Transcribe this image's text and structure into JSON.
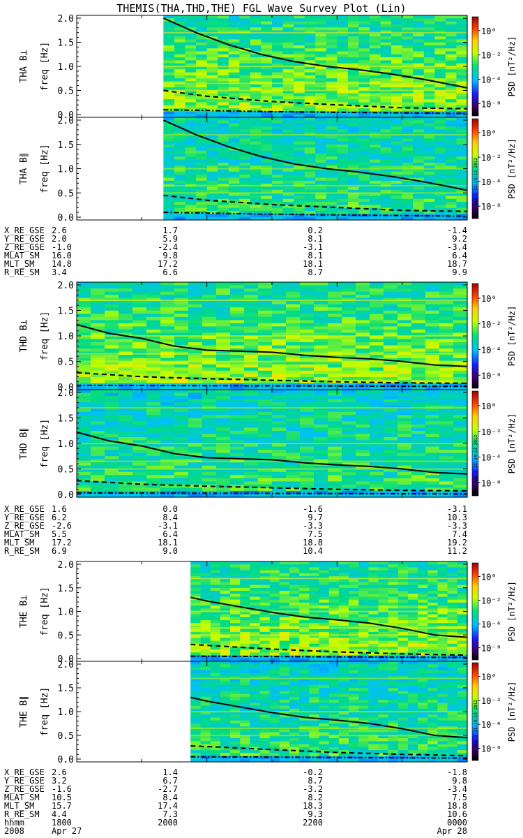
{
  "title": "THEMIS(THA,THD,THE) FGL Wave Survey Plot (Lin)",
  "colorbar": {
    "label": "PSD [nT²/Hz]",
    "ticks": [
      "10⁰",
      "10⁻²",
      "10⁻⁴",
      "10⁻⁶"
    ],
    "colors": [
      "#000000",
      "#4b0082",
      "#0000ff",
      "#00bfff",
      "#00ff80",
      "#ffff00",
      "#ff8000",
      "#ff0000",
      "#8b0000"
    ]
  },
  "stamps": [
    "Mon Sep 3 11:34:13 2012",
    "Mon Sep 3 11:34:13 2012",
    "Mon Sep 3 11:34:14 2012"
  ],
  "chart_data": [
    {
      "type": "heatmap",
      "probe": "THA",
      "x_ticks": [
        "1800",
        "2000",
        "2200",
        "0000"
      ],
      "ylim": [
        0,
        2.0
      ],
      "yticks": [
        "0.0",
        "0.5",
        "1.0",
        "1.5",
        "2.0"
      ],
      "ylabel": "freq [Hz]",
      "data_start_hhmm": "1920",
      "panels": [
        {
          "name": "THA B⊥",
          "solid_line": [
            [
              1920,
              2.0
            ],
            [
              1950,
              1.7
            ],
            [
              2020,
              1.45
            ],
            [
              2050,
              1.25
            ],
            [
              2120,
              1.1
            ],
            [
              2150,
              1.0
            ],
            [
              2220,
              0.93
            ],
            [
              2250,
              0.84
            ],
            [
              2320,
              0.73
            ],
            [
              2350,
              0.6
            ],
            [
              2400,
              0.55
            ]
          ],
          "dashed_line": [
            [
              1920,
              0.5
            ],
            [
              2000,
              0.38
            ],
            [
              2100,
              0.27
            ],
            [
              2200,
              0.2
            ],
            [
              2300,
              0.14
            ],
            [
              2400,
              0.12
            ]
          ],
          "dashdot_line": [
            [
              1920,
              0.1
            ],
            [
              2100,
              0.06
            ],
            [
              2400,
              0.02
            ]
          ]
        },
        {
          "name": "THA B∥",
          "solid_line": [
            [
              1920,
              2.0
            ],
            [
              1950,
              1.7
            ],
            [
              2020,
              1.45
            ],
            [
              2050,
              1.25
            ],
            [
              2120,
              1.1
            ],
            [
              2150,
              1.0
            ],
            [
              2220,
              0.93
            ],
            [
              2250,
              0.84
            ],
            [
              2320,
              0.73
            ],
            [
              2350,
              0.6
            ],
            [
              2400,
              0.55
            ]
          ],
          "dashed_line": [
            [
              1920,
              0.45
            ],
            [
              2000,
              0.35
            ],
            [
              2100,
              0.26
            ],
            [
              2200,
              0.2
            ],
            [
              2300,
              0.14
            ],
            [
              2400,
              0.12
            ]
          ],
          "dashdot_line": [
            [
              1920,
              0.1
            ],
            [
              2100,
              0.06
            ],
            [
              2400,
              0.02
            ]
          ]
        }
      ],
      "ephemeris": [
        {
          "label": "X_RE_GSE",
          "values": [
            "2.6",
            "1.7",
            "0.2",
            "-1.4"
          ]
        },
        {
          "label": "Y_RE_GSE",
          "values": [
            "2.0",
            "5.9",
            "8.1",
            "9.2"
          ]
        },
        {
          "label": "Z_RE_GSE",
          "values": [
            "-1.0",
            "-2.4",
            "-3.1",
            "-3.4"
          ]
        },
        {
          "label": "MLAT_SM",
          "values": [
            "16.0",
            "9.8",
            "8.1",
            "6.4"
          ]
        },
        {
          "label": "MLT_SM",
          "values": [
            "14.8",
            "17.2",
            "18.1",
            "18.7"
          ]
        },
        {
          "label": "R_RE_SM",
          "values": [
            "3.4",
            "6.6",
            "8.7",
            "9.9"
          ]
        }
      ]
    },
    {
      "type": "heatmap",
      "probe": "THD",
      "x_ticks": [
        "1800",
        "2000",
        "2200",
        "0000"
      ],
      "ylim": [
        0,
        2.0
      ],
      "yticks": [
        "0.0",
        "0.5",
        "1.0",
        "1.5",
        "2.0"
      ],
      "ylabel": "freq [Hz]",
      "data_start_hhmm": "1800",
      "panels": [
        {
          "name": "THD B⊥",
          "solid_line": [
            [
              1800,
              1.22
            ],
            [
              1830,
              1.05
            ],
            [
              1900,
              0.95
            ],
            [
              1930,
              0.8
            ],
            [
              2000,
              0.72
            ],
            [
              2030,
              0.7
            ],
            [
              2100,
              0.68
            ],
            [
              2130,
              0.62
            ],
            [
              2200,
              0.58
            ],
            [
              2230,
              0.55
            ],
            [
              2300,
              0.5
            ],
            [
              2330,
              0.43
            ],
            [
              2400,
              0.4
            ]
          ],
          "dashed_line": [
            [
              1800,
              0.28
            ],
            [
              1900,
              0.2
            ],
            [
              2000,
              0.16
            ],
            [
              2100,
              0.13
            ],
            [
              2200,
              0.1
            ],
            [
              2300,
              0.08
            ],
            [
              2400,
              0.07
            ]
          ],
          "dashdot_line": [
            [
              1800,
              0.03
            ],
            [
              2400,
              0.01
            ]
          ]
        },
        {
          "name": "THD B∥",
          "solid_line": [
            [
              1800,
              1.22
            ],
            [
              1830,
              1.05
            ],
            [
              1900,
              0.95
            ],
            [
              1930,
              0.8
            ],
            [
              2000,
              0.72
            ],
            [
              2030,
              0.7
            ],
            [
              2100,
              0.68
            ],
            [
              2130,
              0.62
            ],
            [
              2200,
              0.58
            ],
            [
              2230,
              0.55
            ],
            [
              2300,
              0.5
            ],
            [
              2330,
              0.43
            ],
            [
              2400,
              0.4
            ]
          ],
          "dashed_line": [
            [
              1800,
              0.27
            ],
            [
              1900,
              0.2
            ],
            [
              2000,
              0.16
            ],
            [
              2100,
              0.13
            ],
            [
              2200,
              0.1
            ],
            [
              2300,
              0.08
            ],
            [
              2400,
              0.07
            ]
          ],
          "dashdot_line": [
            [
              1800,
              0.03
            ],
            [
              2400,
              0.01
            ]
          ]
        }
      ],
      "ephemeris": [
        {
          "label": "X_RE_GSE",
          "values": [
            "1.6",
            "0.0",
            "-1.6",
            "-3.1"
          ]
        },
        {
          "label": "Y_RE_GSE",
          "values": [
            "6.2",
            "8.4",
            "9.7",
            "10.3"
          ]
        },
        {
          "label": "Z_RE_GSE",
          "values": [
            "-2.6",
            "-3.1",
            "-3.3",
            "-3.3"
          ]
        },
        {
          "label": "MLAT_SM",
          "values": [
            "5.5",
            "6.4",
            "7.5",
            "7.4"
          ]
        },
        {
          "label": "MLT_SM",
          "values": [
            "17.2",
            "18.1",
            "18.8",
            "19.2"
          ]
        },
        {
          "label": "R_RE_SM",
          "values": [
            "6.9",
            "9.0",
            "10.4",
            "11.2"
          ]
        }
      ]
    },
    {
      "type": "heatmap",
      "probe": "THE",
      "x_ticks": [
        "1800",
        "2000",
        "2200",
        "0000"
      ],
      "ylim": [
        0,
        2.0
      ],
      "yticks": [
        "0.0",
        "0.5",
        "1.0",
        "1.5",
        "2.0"
      ],
      "ylabel": "freq [Hz]",
      "data_start_hhmm": "1945",
      "panels": [
        {
          "name": "THE B⊥",
          "solid_line": [
            [
              1945,
              1.3
            ],
            [
              2000,
              1.22
            ],
            [
              2030,
              1.1
            ],
            [
              2100,
              0.98
            ],
            [
              2130,
              0.88
            ],
            [
              2200,
              0.82
            ],
            [
              2230,
              0.75
            ],
            [
              2300,
              0.64
            ],
            [
              2330,
              0.5
            ],
            [
              2400,
              0.45
            ]
          ],
          "dashed_line": [
            [
              1945,
              0.3
            ],
            [
              2100,
              0.2
            ],
            [
              2200,
              0.14
            ],
            [
              2300,
              0.1
            ],
            [
              2400,
              0.07
            ]
          ],
          "dashdot_line": [
            [
              1945,
              0.05
            ],
            [
              2400,
              0.02
            ]
          ]
        },
        {
          "name": "THE B∥",
          "solid_line": [
            [
              1945,
              1.3
            ],
            [
              2000,
              1.22
            ],
            [
              2030,
              1.1
            ],
            [
              2100,
              0.98
            ],
            [
              2130,
              0.88
            ],
            [
              2200,
              0.82
            ],
            [
              2230,
              0.75
            ],
            [
              2300,
              0.64
            ],
            [
              2330,
              0.5
            ],
            [
              2400,
              0.45
            ]
          ],
          "dashed_line": [
            [
              1945,
              0.28
            ],
            [
              2100,
              0.2
            ],
            [
              2200,
              0.14
            ],
            [
              2300,
              0.1
            ],
            [
              2400,
              0.07
            ]
          ],
          "dashdot_line": [
            [
              1945,
              0.05
            ],
            [
              2400,
              0.02
            ]
          ]
        }
      ],
      "ephemeris": [
        {
          "label": "X_RE_GSE",
          "values": [
            "2.6",
            "1.4",
            "-0.2",
            "-1.8"
          ]
        },
        {
          "label": "Y_RE_GSE",
          "values": [
            "3.2",
            "6.7",
            "8.7",
            "9.8"
          ]
        },
        {
          "label": "Z_RE_GSE",
          "values": [
            "-1.6",
            "-2.7",
            "-3.2",
            "-3.4"
          ]
        },
        {
          "label": "MLAT_SM",
          "values": [
            "10.5",
            "8.4",
            "8.2",
            "7.5"
          ]
        },
        {
          "label": "MLT_SM",
          "values": [
            "15.7",
            "17.4",
            "18.3",
            "18.8"
          ]
        },
        {
          "label": "R_RE_SM",
          "values": [
            "4.4",
            "7.3",
            "9.3",
            "10.6"
          ]
        }
      ],
      "footer": {
        "rows": [
          {
            "label": "hhmm",
            "values": [
              "1800",
              "2000",
              "2200",
              "0000"
            ]
          },
          {
            "label": "2008",
            "values": [
              "Apr 27",
              "",
              "",
              "Apr 28"
            ]
          }
        ]
      }
    }
  ]
}
